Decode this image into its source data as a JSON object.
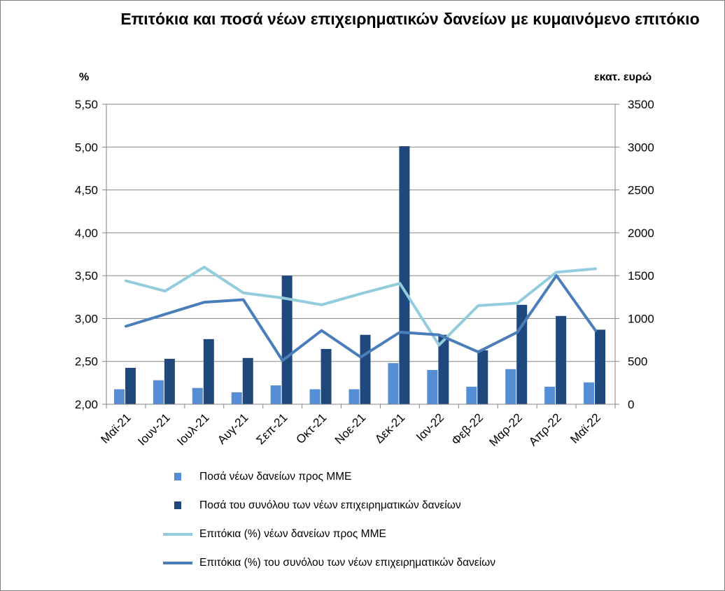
{
  "chart_data": {
    "type": "bar",
    "title": "Επιτόκια και ποσά νέων επιχειρηματικών δανείων με κυμαινόμενο επιτόκιο",
    "left_axis": {
      "unit": "%",
      "ylim": [
        2.0,
        5.5
      ],
      "ticks": [
        "2,00",
        "2,50",
        "3,00",
        "3,50",
        "4,00",
        "4,50",
        "5,00",
        "5,50"
      ],
      "tick_values": [
        2.0,
        2.5,
        3.0,
        3.5,
        4.0,
        4.5,
        5.0,
        5.5
      ]
    },
    "right_axis": {
      "unit": "εκατ. ευρώ",
      "ylim": [
        0,
        3500
      ],
      "ticks": [
        "0",
        "500",
        "1000",
        "1500",
        "2000",
        "2500",
        "3000",
        "3500"
      ],
      "tick_values": [
        0,
        500,
        1000,
        1500,
        2000,
        2500,
        3000,
        3500
      ]
    },
    "categories": [
      "Μαϊ-21",
      "Ιουν-21",
      "Ιουλ-21",
      "Αυγ-21",
      "Σεπ-21",
      "Οκτ-21",
      "Νοε-21",
      "Δεκ-21",
      "Ιαν-22",
      "Φεβ-22",
      "Μαρ-22",
      "Απρ-22",
      "Μαϊ-22"
    ],
    "grid": true,
    "legend_position": "bottom",
    "series": [
      {
        "name": "Ποσά νέων δανείων προς ΜΜΕ",
        "kind": "bar",
        "axis": "right",
        "color": "#558ed5",
        "values": [
          175,
          280,
          190,
          140,
          220,
          175,
          175,
          480,
          400,
          205,
          410,
          205,
          255
        ]
      },
      {
        "name": "Ποσά του συνόλου των νέων επιχειρηματικών δανείων",
        "kind": "bar",
        "axis": "right",
        "color": "#1f497d",
        "values": [
          425,
          530,
          760,
          540,
          1500,
          645,
          810,
          3010,
          810,
          630,
          1160,
          1030,
          870
        ]
      },
      {
        "name": "Επιτόκια (%) νέων δανείων προς ΜΜΕ",
        "kind": "line",
        "axis": "left",
        "color": "#93cddd",
        "values": [
          3.44,
          3.32,
          3.6,
          3.3,
          3.24,
          3.16,
          3.29,
          3.41,
          2.69,
          3.15,
          3.18,
          3.54,
          3.58
        ]
      },
      {
        "name": "Επιτόκια (%) του συνόλου των νέων επιχειρηματικών δανείων",
        "kind": "line",
        "axis": "left",
        "color": "#4a7ebb",
        "values": [
          2.91,
          3.05,
          3.19,
          3.22,
          2.51,
          2.86,
          2.55,
          2.84,
          2.81,
          2.61,
          2.84,
          3.5,
          2.86
        ]
      }
    ]
  }
}
